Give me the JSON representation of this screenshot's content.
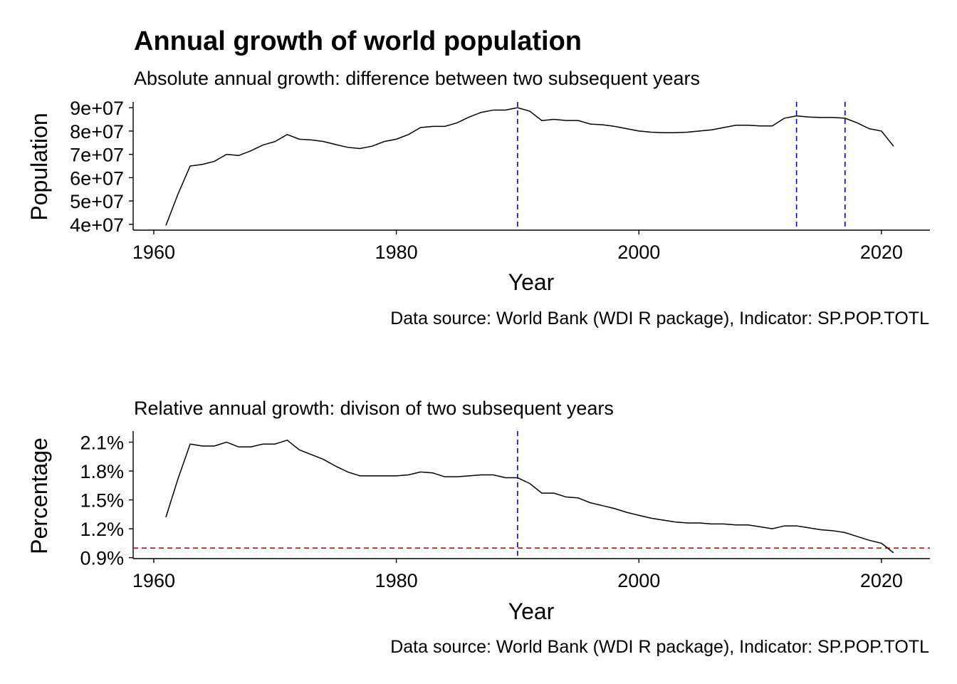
{
  "title": "Annual growth of world population",
  "colors": {
    "reference_blue": "#0000CC",
    "reference_red": "#E00000",
    "line": "#000000"
  },
  "chart_data": [
    {
      "type": "line",
      "subtitle": "Absolute annual growth: difference between two subsequent years",
      "xlabel": "Year",
      "ylabel": "Population",
      "caption": "Data source: World Bank (WDI R package), Indicator: SP.POP.TOTL",
      "xlim": [
        1958.3,
        2024
      ],
      "ylim": [
        37500000,
        92500000
      ],
      "x_ticks": [
        1960,
        1980,
        2000,
        2020
      ],
      "x_tick_labels": [
        "1960",
        "1980",
        "2000",
        "2020"
      ],
      "y_ticks": [
        40000000,
        50000000,
        60000000,
        70000000,
        80000000,
        90000000
      ],
      "y_tick_labels": [
        "4e+07",
        "5e+07",
        "6e+07",
        "7e+07",
        "8e+07",
        "9e+07"
      ],
      "grid": false,
      "vlines": [
        1990,
        2013,
        2017
      ],
      "vline_color": "blue",
      "hlines": [],
      "series": [
        {
          "x": [
            1961,
            1962,
            1963,
            1964,
            1965,
            1966,
            1967,
            1968,
            1969,
            1970,
            1971,
            1972,
            1973,
            1974,
            1975,
            1976,
            1977,
            1978,
            1979,
            1980,
            1981,
            1982,
            1983,
            1984,
            1985,
            1986,
            1987,
            1988,
            1989,
            1990,
            1991,
            1992,
            1993,
            1994,
            1995,
            1996,
            1997,
            1998,
            1999,
            2000,
            2001,
            2002,
            2003,
            2004,
            2005,
            2006,
            2007,
            2008,
            2009,
            2010,
            2011,
            2012,
            2013,
            2014,
            2015,
            2016,
            2017,
            2018,
            2019,
            2020,
            2021
          ],
          "values": [
            39500000,
            53000000,
            65000000,
            65700000,
            67000000,
            70000000,
            69500000,
            71500000,
            74000000,
            75500000,
            78500000,
            76500000,
            76200000,
            75500000,
            74200000,
            73000000,
            72500000,
            73500000,
            75500000,
            76500000,
            78500000,
            81500000,
            82000000,
            82000000,
            83500000,
            86000000,
            88000000,
            89000000,
            89000000,
            90000000,
            88500000,
            84500000,
            85000000,
            84500000,
            84500000,
            83000000,
            82700000,
            82000000,
            81000000,
            80000000,
            79500000,
            79300000,
            79300000,
            79500000,
            80000000,
            80500000,
            81500000,
            82500000,
            82500000,
            82200000,
            82200000,
            85500000,
            86500000,
            86000000,
            85800000,
            85800000,
            85500000,
            83500000,
            81000000,
            80000000,
            73500000
          ]
        }
      ]
    },
    {
      "type": "line",
      "subtitle": "Relative annual growth: divison of two subsequent years",
      "xlabel": "Year",
      "ylabel": "Percentage",
      "caption": "Data source: World Bank (WDI R package), Indicator: SP.POP.TOTL",
      "xlim": [
        1958.3,
        2024
      ],
      "ylim": [
        0.89,
        2.215
      ],
      "x_ticks": [
        1960,
        1980,
        2000,
        2020
      ],
      "x_tick_labels": [
        "1960",
        "1980",
        "2000",
        "2020"
      ],
      "y_ticks": [
        0.9,
        1.2,
        1.5,
        1.8,
        2.1
      ],
      "y_tick_labels": [
        "0.9%",
        "1.2%",
        "1.5%",
        "1.8%",
        "2.1%"
      ],
      "grid": false,
      "vlines": [
        1990
      ],
      "vline_color": "blue",
      "hlines": [
        1.0
      ],
      "hline_color": "red",
      "series": [
        {
          "x": [
            1961,
            1962,
            1963,
            1964,
            1965,
            1966,
            1967,
            1968,
            1969,
            1970,
            1971,
            1972,
            1973,
            1974,
            1975,
            1976,
            1977,
            1978,
            1979,
            1980,
            1981,
            1982,
            1983,
            1984,
            1985,
            1986,
            1987,
            1988,
            1989,
            1990,
            1991,
            1992,
            1993,
            1994,
            1995,
            1996,
            1997,
            1998,
            1999,
            2000,
            2001,
            2002,
            2003,
            2004,
            2005,
            2006,
            2007,
            2008,
            2009,
            2010,
            2011,
            2012,
            2013,
            2014,
            2015,
            2016,
            2017,
            2018,
            2019,
            2020,
            2021
          ],
          "values": [
            1.32,
            1.72,
            2.08,
            2.06,
            2.06,
            2.1,
            2.05,
            2.05,
            2.08,
            2.08,
            2.12,
            2.02,
            1.97,
            1.92,
            1.85,
            1.79,
            1.75,
            1.75,
            1.75,
            1.75,
            1.76,
            1.79,
            1.78,
            1.74,
            1.74,
            1.75,
            1.76,
            1.76,
            1.73,
            1.73,
            1.67,
            1.57,
            1.57,
            1.53,
            1.52,
            1.47,
            1.44,
            1.41,
            1.37,
            1.34,
            1.31,
            1.29,
            1.27,
            1.26,
            1.26,
            1.25,
            1.25,
            1.24,
            1.24,
            1.22,
            1.2,
            1.23,
            1.23,
            1.21,
            1.19,
            1.18,
            1.16,
            1.12,
            1.08,
            1.05,
            0.95
          ]
        }
      ]
    }
  ]
}
